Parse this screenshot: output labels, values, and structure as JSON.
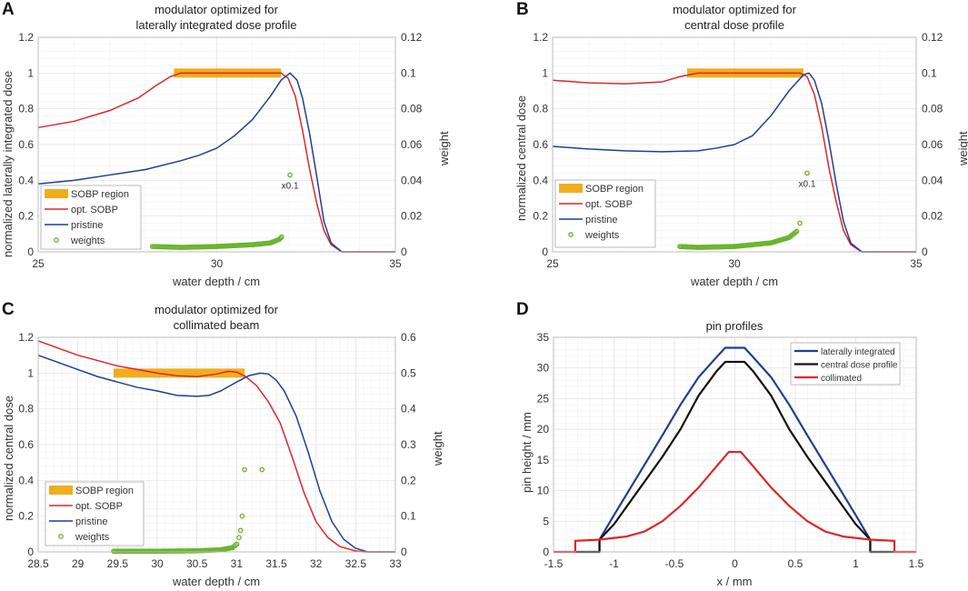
{
  "colors": {
    "sobp_region": "#f0ad1e",
    "opt_sobp": "#e0262a",
    "pristine": "#1f3f96",
    "weights": "#6ab42d",
    "lateral": "#1f3f96",
    "central": "#111111",
    "collimated": "#e0262a"
  },
  "chart_data": [
    {
      "panel": "A",
      "type": "line",
      "title": [
        "modulator optimized for",
        "laterally integrated dose profile"
      ],
      "xlabel": "water depth / cm",
      "ylabel": "normalized laterally integrated dose",
      "ylabel_right": "weight",
      "xlim": [
        25,
        35
      ],
      "ylim": [
        0,
        1.2
      ],
      "ylim_right": [
        0,
        0.12
      ],
      "xticks": [
        "25",
        "30",
        "35"
      ],
      "yticks": [
        "0",
        "0.2",
        "0.4",
        "0.6",
        "0.8",
        "1",
        "1.2"
      ],
      "yticks_right": [
        "0",
        "0.02",
        "0.04",
        "0.06",
        "0.08",
        "0.1",
        "0.12"
      ],
      "grid": true,
      "legend": "bottom-left",
      "annotation": {
        "text": "x0.1",
        "x": 32.05,
        "y_right": 0.043
      },
      "sobp_region": {
        "name": "SOBP region",
        "x": [
          28.8,
          31.8
        ],
        "y": 1.0
      },
      "series": [
        {
          "name": "opt. SOBP",
          "color_key": "opt_sobp",
          "points": [
            [
              25,
              0.695
            ],
            [
              26,
              0.73
            ],
            [
              27,
              0.79
            ],
            [
              27.8,
              0.86
            ],
            [
              28.3,
              0.93
            ],
            [
              28.7,
              0.98
            ],
            [
              29,
              1.0
            ],
            [
              30,
              1.0
            ],
            [
              31,
              1.0
            ],
            [
              31.8,
              1.0
            ],
            [
              32.0,
              0.97
            ],
            [
              32.2,
              0.87
            ],
            [
              32.4,
              0.68
            ],
            [
              32.6,
              0.46
            ],
            [
              32.8,
              0.27
            ],
            [
              33.0,
              0.12
            ],
            [
              33.2,
              0.04
            ],
            [
              33.5,
              0.0
            ],
            [
              35,
              0.0
            ]
          ]
        },
        {
          "name": "pristine",
          "color_key": "pristine",
          "points": [
            [
              25,
              0.38
            ],
            [
              26,
              0.4
            ],
            [
              27,
              0.43
            ],
            [
              28,
              0.46
            ],
            [
              29,
              0.51
            ],
            [
              29.5,
              0.54
            ],
            [
              30,
              0.58
            ],
            [
              30.5,
              0.65
            ],
            [
              31,
              0.74
            ],
            [
              31.5,
              0.87
            ],
            [
              31.8,
              0.96
            ],
            [
              32.05,
              1.0
            ],
            [
              32.25,
              0.96
            ],
            [
              32.4,
              0.86
            ],
            [
              32.6,
              0.66
            ],
            [
              32.8,
              0.42
            ],
            [
              33.0,
              0.17
            ],
            [
              33.2,
              0.05
            ],
            [
              33.5,
              0.0
            ],
            [
              35,
              0.0
            ]
          ]
        }
      ],
      "weights": {
        "name": "weights",
        "dense": [
          [
            28.2,
            0.003
          ],
          [
            29,
            0.0025
          ],
          [
            30,
            0.003
          ],
          [
            31,
            0.004
          ],
          [
            31.5,
            0.005
          ],
          [
            31.75,
            0.007
          ],
          [
            31.85,
            0.009
          ]
        ],
        "points": [
          [
            32.05,
            0.043
          ]
        ]
      }
    },
    {
      "panel": "B",
      "type": "line",
      "title": [
        "modulator optimized for",
        "central dose profile"
      ],
      "xlabel": "water depth / cm",
      "ylabel": "normalized central dose",
      "ylabel_right": "weight",
      "xlim": [
        25,
        35
      ],
      "ylim": [
        0,
        1.2
      ],
      "ylim_right": [
        0,
        0.12
      ],
      "xticks": [
        "25",
        "30",
        "35"
      ],
      "yticks": [
        "0",
        "0.2",
        "0.4",
        "0.6",
        "0.8",
        "1",
        "1.2"
      ],
      "yticks_right": [
        "0",
        "0.02",
        "0.04",
        "0.06",
        "0.08",
        "0.1",
        "0.12"
      ],
      "grid": true,
      "legend": "bottom-left",
      "annotation": {
        "text": "x0.1",
        "x": 32.0,
        "y_right": 0.044
      },
      "sobp_region": {
        "name": "SOBP region",
        "x": [
          28.7,
          31.9
        ],
        "y": 1.0
      },
      "series": [
        {
          "name": "opt. SOBP",
          "color_key": "opt_sobp",
          "points": [
            [
              25,
              0.96
            ],
            [
              26,
              0.945
            ],
            [
              27,
              0.94
            ],
            [
              28,
              0.95
            ],
            [
              28.5,
              0.98
            ],
            [
              29,
              1.0
            ],
            [
              30,
              1.0
            ],
            [
              31,
              1.0
            ],
            [
              31.8,
              1.0
            ],
            [
              32.0,
              0.98
            ],
            [
              32.2,
              0.88
            ],
            [
              32.4,
              0.7
            ],
            [
              32.6,
              0.47
            ],
            [
              32.8,
              0.28
            ],
            [
              33.0,
              0.12
            ],
            [
              33.2,
              0.04
            ],
            [
              33.5,
              0.0
            ],
            [
              35,
              0.0
            ]
          ]
        },
        {
          "name": "pristine",
          "color_key": "pristine",
          "points": [
            [
              25,
              0.59
            ],
            [
              26,
              0.575
            ],
            [
              27,
              0.565
            ],
            [
              28,
              0.56
            ],
            [
              29,
              0.565
            ],
            [
              29.5,
              0.58
            ],
            [
              30,
              0.6
            ],
            [
              30.5,
              0.65
            ],
            [
              31,
              0.76
            ],
            [
              31.5,
              0.9
            ],
            [
              31.9,
              0.99
            ],
            [
              32.05,
              1.0
            ],
            [
              32.2,
              0.96
            ],
            [
              32.4,
              0.83
            ],
            [
              32.6,
              0.62
            ],
            [
              32.8,
              0.38
            ],
            [
              33.0,
              0.17
            ],
            [
              33.2,
              0.05
            ],
            [
              33.5,
              0.0
            ],
            [
              35,
              0.0
            ]
          ]
        }
      ],
      "weights": {
        "name": "weights",
        "dense": [
          [
            28.5,
            0.003
          ],
          [
            29,
            0.0025
          ],
          [
            30,
            0.003
          ],
          [
            31,
            0.005
          ],
          [
            31.5,
            0.008
          ],
          [
            31.75,
            0.012
          ]
        ],
        "points": [
          [
            31.8,
            0.016
          ],
          [
            32.0,
            0.044
          ]
        ]
      }
    },
    {
      "panel": "C",
      "type": "line",
      "title": [
        "modulator optimized for",
        "collimated beam"
      ],
      "xlabel": "water depth / cm",
      "ylabel": "normalized central dose",
      "ylabel_right": "weight",
      "xlim": [
        28.5,
        33
      ],
      "ylim": [
        0,
        1.2
      ],
      "ylim_right": [
        0,
        0.6
      ],
      "xticks": [
        "28.5",
        "29",
        "29.5",
        "30",
        "30.5",
        "31",
        "31.5",
        "32",
        "32.5",
        "33"
      ],
      "yticks": [
        "0",
        "0.2",
        "0.4",
        "0.6",
        "0.8",
        "1",
        "1.2"
      ],
      "yticks_right": [
        "0",
        "0.1",
        "0.2",
        "0.3",
        "0.4",
        "0.5",
        "0.6"
      ],
      "grid": true,
      "legend": "bottom-left",
      "sobp_region": {
        "name": "SOBP region",
        "x": [
          29.45,
          31.1
        ],
        "y": 1.0
      },
      "series": [
        {
          "name": "opt. SOBP",
          "color_key": "opt_sobp",
          "points": [
            [
              28.5,
              1.18
            ],
            [
              28.75,
              1.14
            ],
            [
              29,
              1.1
            ],
            [
              29.25,
              1.07
            ],
            [
              29.5,
              1.04
            ],
            [
              29.75,
              1.02
            ],
            [
              30,
              1.0
            ],
            [
              30.25,
              0.985
            ],
            [
              30.5,
              0.98
            ],
            [
              30.75,
              0.995
            ],
            [
              30.9,
              1.01
            ],
            [
              31.0,
              1.005
            ],
            [
              31.1,
              0.985
            ],
            [
              31.25,
              0.93
            ],
            [
              31.4,
              0.84
            ],
            [
              31.55,
              0.72
            ],
            [
              31.7,
              0.53
            ],
            [
              31.85,
              0.33
            ],
            [
              32.0,
              0.17
            ],
            [
              32.15,
              0.08
            ],
            [
              32.3,
              0.03
            ],
            [
              32.5,
              0.005
            ],
            [
              32.6,
              0.0
            ],
            [
              33,
              0.0
            ]
          ]
        },
        {
          "name": "pristine",
          "color_key": "pristine",
          "points": [
            [
              28.5,
              1.1
            ],
            [
              28.75,
              1.06
            ],
            [
              29,
              1.02
            ],
            [
              29.25,
              0.98
            ],
            [
              29.5,
              0.95
            ],
            [
              29.75,
              0.92
            ],
            [
              30,
              0.9
            ],
            [
              30.25,
              0.875
            ],
            [
              30.5,
              0.87
            ],
            [
              30.65,
              0.875
            ],
            [
              30.8,
              0.9
            ],
            [
              31.0,
              0.95
            ],
            [
              31.15,
              0.985
            ],
            [
              31.3,
              1.0
            ],
            [
              31.4,
              0.995
            ],
            [
              31.5,
              0.96
            ],
            [
              31.6,
              0.9
            ],
            [
              31.75,
              0.76
            ],
            [
              31.9,
              0.56
            ],
            [
              32.05,
              0.34
            ],
            [
              32.2,
              0.17
            ],
            [
              32.35,
              0.07
            ],
            [
              32.5,
              0.02
            ],
            [
              32.65,
              0.0
            ],
            [
              33,
              0.0
            ]
          ]
        }
      ],
      "weights": {
        "name": "weights",
        "dense": [
          [
            29.45,
            0.002
          ],
          [
            30,
            0.002
          ],
          [
            30.5,
            0.003
          ],
          [
            30.8,
            0.006
          ],
          [
            30.95,
            0.012
          ],
          [
            31.02,
            0.025
          ]
        ],
        "points": [
          [
            31.03,
            0.04
          ],
          [
            31.05,
            0.06
          ],
          [
            31.07,
            0.1
          ],
          [
            31.1,
            0.23
          ],
          [
            31.32,
            0.23
          ]
        ]
      }
    },
    {
      "panel": "D",
      "type": "line",
      "title": [
        "pin profiles"
      ],
      "xlabel": "x / mm",
      "ylabel": "pin height / mm",
      "xlim": [
        -1.5,
        1.5
      ],
      "ylim": [
        0,
        35
      ],
      "xticks": [
        "-1.5",
        "-1",
        "-0.5",
        "0",
        "0.5",
        "1",
        "1.5"
      ],
      "yticks": [
        "0",
        "5",
        "10",
        "15",
        "20",
        "25",
        "30",
        "35"
      ],
      "grid": true,
      "legend": "top-right",
      "series": [
        {
          "name": "laterally integrated",
          "color_key": "lateral",
          "points": [
            [
              -1.12,
              0
            ],
            [
              -1.12,
              2
            ],
            [
              -1.0,
              6
            ],
            [
              -0.8,
              12.5
            ],
            [
              -0.6,
              19
            ],
            [
              -0.45,
              24
            ],
            [
              -0.3,
              28.5
            ],
            [
              -0.15,
              31.8
            ],
            [
              -0.08,
              33.3
            ],
            [
              0.08,
              33.3
            ],
            [
              0.15,
              31.8
            ],
            [
              0.3,
              28.5
            ],
            [
              0.45,
              24
            ],
            [
              0.6,
              19
            ],
            [
              0.8,
              12.5
            ],
            [
              1.0,
              6
            ],
            [
              1.12,
              2
            ],
            [
              1.12,
              0
            ]
          ]
        },
        {
          "name": "central dose profile",
          "color_key": "central",
          "points": [
            [
              -1.32,
              0
            ],
            [
              -1.12,
              0
            ],
            [
              -1.12,
              2
            ],
            [
              -1.0,
              4.5
            ],
            [
              -0.8,
              10
            ],
            [
              -0.6,
              15.5
            ],
            [
              -0.45,
              20
            ],
            [
              -0.3,
              25.5
            ],
            [
              -0.15,
              29.5
            ],
            [
              -0.08,
              31
            ],
            [
              0.08,
              31
            ],
            [
              0.15,
              29.5
            ],
            [
              0.3,
              25.5
            ],
            [
              0.45,
              20
            ],
            [
              0.6,
              15.5
            ],
            [
              0.8,
              10
            ],
            [
              1.0,
              4.5
            ],
            [
              1.12,
              2
            ],
            [
              1.12,
              0
            ],
            [
              1.32,
              0
            ]
          ]
        },
        {
          "name": "collimated",
          "color_key": "collimated",
          "points": [
            [
              -1.5,
              0
            ],
            [
              -1.32,
              0
            ],
            [
              -1.32,
              1.8
            ],
            [
              -1.12,
              2.0
            ],
            [
              -0.9,
              2.5
            ],
            [
              -0.75,
              3.3
            ],
            [
              -0.6,
              5
            ],
            [
              -0.45,
              7.5
            ],
            [
              -0.3,
              10.5
            ],
            [
              -0.15,
              14
            ],
            [
              -0.05,
              16.3
            ],
            [
              0.05,
              16.3
            ],
            [
              0.15,
              14
            ],
            [
              0.3,
              10.5
            ],
            [
              0.45,
              7.5
            ],
            [
              0.6,
              5
            ],
            [
              0.75,
              3.3
            ],
            [
              0.9,
              2.5
            ],
            [
              1.12,
              2.0
            ],
            [
              1.32,
              1.8
            ],
            [
              1.32,
              0
            ],
            [
              1.5,
              0
            ]
          ]
        }
      ]
    }
  ]
}
